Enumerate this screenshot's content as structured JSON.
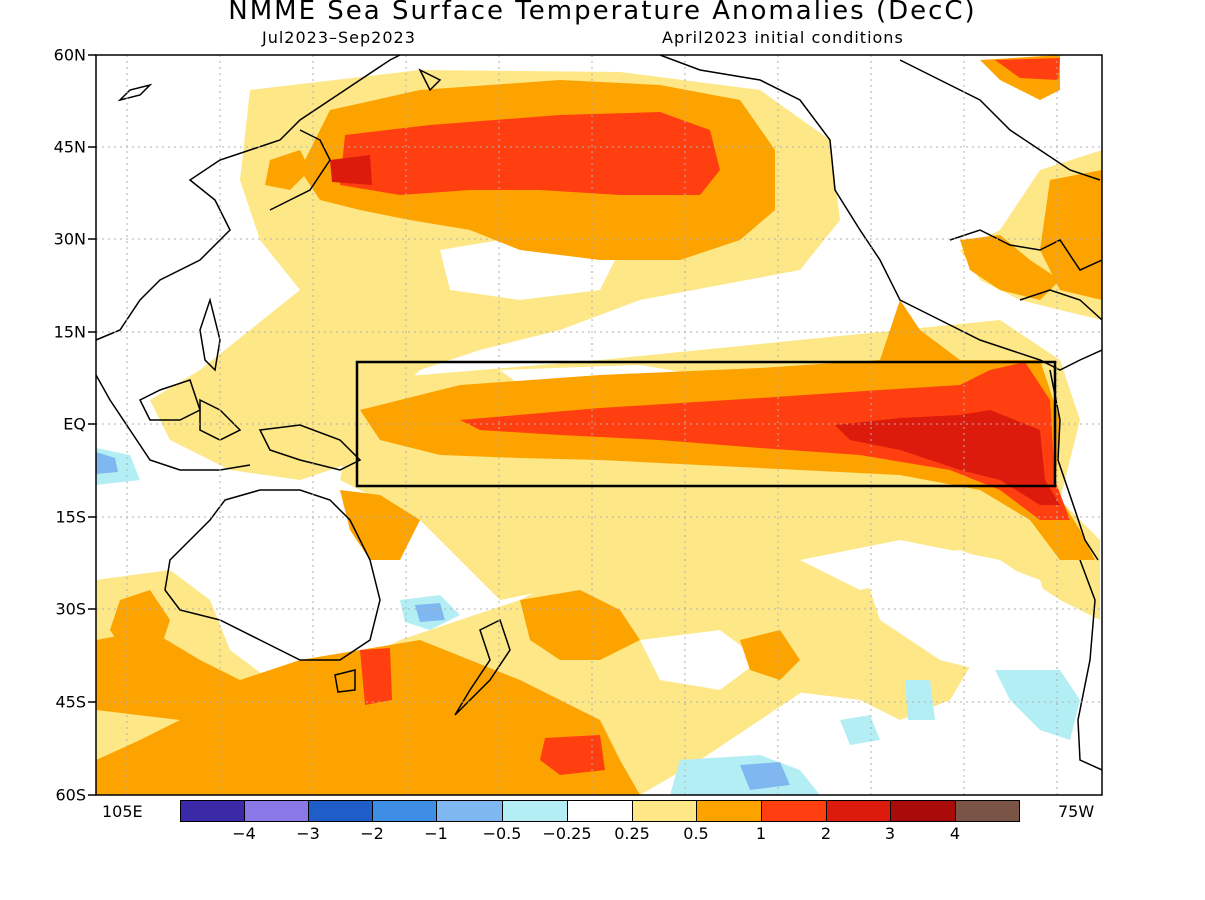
{
  "title": "NMME Sea Surface Temperature Anomalies (DecC)",
  "subtitle_left": "Jul2023–Sep2023",
  "subtitle_right": "April2023 initial conditions",
  "lat_labels": [
    "60N",
    "45N",
    "30N",
    "15N",
    "EQ",
    "15S",
    "30S",
    "45S",
    "60S"
  ],
  "lon_labels": {
    "west_edge": "105E",
    "east_edge": "75W"
  },
  "colorbar": {
    "labels": [
      "−4",
      "−3",
      "−2",
      "−1",
      "−0.5",
      "−0.25",
      "0.25",
      "0.5",
      "1",
      "2",
      "3",
      "4"
    ],
    "colors": [
      "#3b2aa8",
      "#8a78e6",
      "#1f5ec9",
      "#3f8ee6",
      "#7fb8f0",
      "#b4eef5",
      "#ffffff",
      "#fde787",
      "#fda300",
      "#ff3f10",
      "#dd1b0c",
      "#a90a0a",
      "#7b5448"
    ]
  },
  "colors": {
    "land_outline": "#000000",
    "grid": "#b0b0b0",
    "box": "#000000"
  }
}
